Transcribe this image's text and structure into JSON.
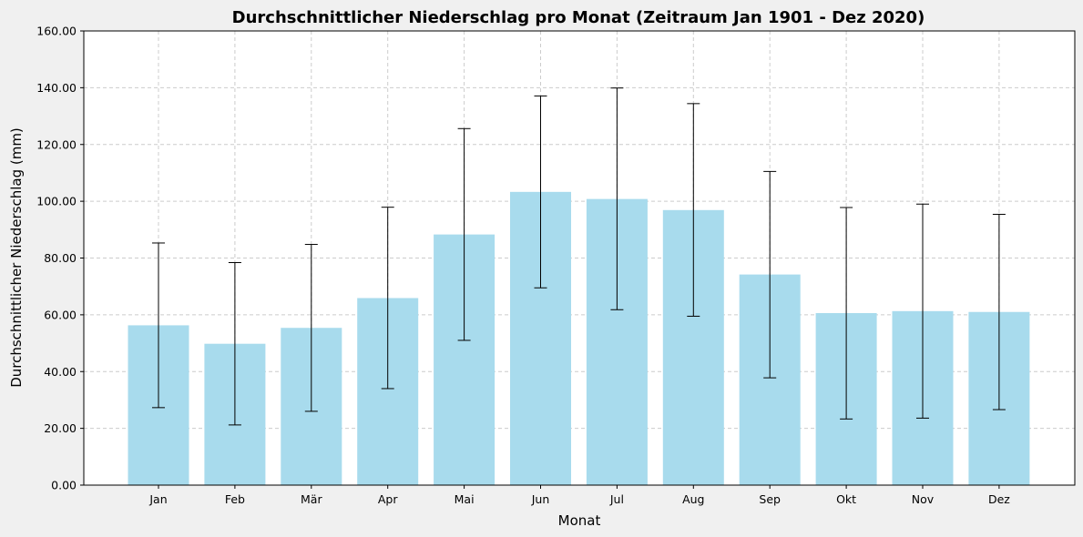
{
  "chart_data": {
    "type": "bar",
    "title": "Durchschnittlicher Niederschlag pro Monat (Zeitraum Jan 1901 - Dez 2020)",
    "xlabel": "Monat",
    "ylabel": "Durchschnittlicher Niederschlag (mm)",
    "categories": [
      "Jan",
      "Feb",
      "Mär",
      "Apr",
      "Mai",
      "Jun",
      "Jul",
      "Aug",
      "Sep",
      "Okt",
      "Nov",
      "Dez"
    ],
    "values": [
      56.3,
      49.8,
      55.4,
      65.9,
      88.3,
      103.3,
      100.8,
      96.9,
      74.2,
      60.6,
      61.3,
      61.0
    ],
    "error_bars": {
      "lower": [
        27.3,
        21.2,
        26.0,
        34.0,
        51.0,
        69.5,
        61.8,
        59.5,
        37.8,
        23.3,
        23.6,
        26.6
      ],
      "upper": [
        85.3,
        78.4,
        84.8,
        97.9,
        125.6,
        137.1,
        139.9,
        134.4,
        110.5,
        97.8,
        99.0,
        95.4
      ]
    },
    "ylim": [
      0,
      160
    ],
    "yticks": [
      "0.00",
      "20.00",
      "40.00",
      "60.00",
      "80.00",
      "100.00",
      "120.00",
      "140.00",
      "160.00"
    ],
    "grid": true,
    "colors": {
      "bar": "#a8dbed",
      "error": "#000000",
      "grid": "#cccccc",
      "plot_bg": "#ffffff",
      "figure_bg": "#f0f0f0"
    }
  }
}
